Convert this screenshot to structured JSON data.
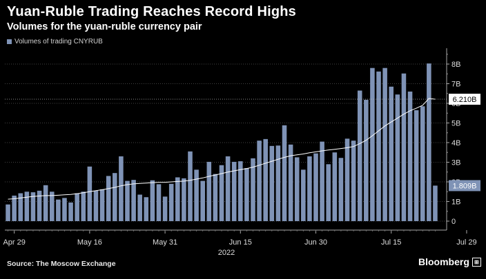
{
  "title": "Yuan-Ruble Trading Reaches Record Highs",
  "subtitle": "Volumes for the yuan-ruble currency pair",
  "legend_label": "Volumes of trading CNYRUB",
  "source": "Source: The Moscow Exchange",
  "brand": "Bloomberg",
  "colors": {
    "bar": "#7f93b6",
    "moving_average": "#ffffff",
    "background": "#000000",
    "grid": "#5a5a5a"
  },
  "chart_data": {
    "type": "bar",
    "xlabel": "",
    "ylabel": "",
    "ylim": [
      -0.3,
      8.8
    ],
    "y_ticks": [
      "0",
      "1B",
      "2B",
      "3B",
      "4B",
      "5B",
      "6B",
      "7B",
      "8B"
    ],
    "y_tick_values": [
      0,
      1,
      2,
      3,
      4,
      5,
      6,
      7,
      8
    ],
    "x_tick_labels": [
      "Apr 29",
      "May 16",
      "May 31",
      "Jun 15",
      "Jun 30",
      "Jul 15",
      "Jul 29"
    ],
    "x_tick_index": [
      1,
      13,
      25,
      37,
      49,
      61,
      73
    ],
    "year_label": "2022",
    "series": [
      {
        "name": "Volumes of trading CNYRUB",
        "unit": "B",
        "values": [
          0.85,
          1.3,
          1.42,
          1.5,
          1.47,
          1.55,
          1.83,
          1.5,
          1.1,
          1.18,
          0.95,
          1.42,
          1.5,
          2.78,
          1.55,
          1.62,
          2.3,
          2.45,
          3.3,
          2.05,
          2.1,
          1.35,
          1.22,
          2.08,
          1.88,
          1.25,
          1.9,
          2.23,
          2.18,
          3.55,
          2.62,
          2.05,
          3.02,
          2.4,
          2.85,
          3.3,
          3.02,
          3.05,
          2.7,
          3.2,
          4.1,
          4.18,
          3.83,
          3.85,
          4.88,
          3.9,
          3.25,
          2.62,
          3.3,
          3.45,
          4.05,
          2.9,
          3.5,
          3.22,
          4.2,
          4.1,
          6.65,
          6.18,
          7.8,
          7.62,
          7.8,
          6.85,
          6.45,
          7.52,
          6.6,
          5.65,
          5.85,
          8.03,
          1.809
        ]
      },
      {
        "name": "",
        "values": [
          1.12,
          1.14,
          1.18,
          1.22,
          1.26,
          1.28,
          1.3,
          1.3,
          1.32,
          1.34,
          1.36,
          1.4,
          1.45,
          1.5,
          1.55,
          1.6,
          1.66,
          1.72,
          1.8,
          1.86,
          1.9,
          1.92,
          1.94,
          1.96,
          1.98,
          1.98,
          2.0,
          2.02,
          2.04,
          2.08,
          2.14,
          2.2,
          2.28,
          2.35,
          2.42,
          2.5,
          2.56,
          2.62,
          2.68,
          2.75,
          2.85,
          2.95,
          3.05,
          3.15,
          3.25,
          3.33,
          3.38,
          3.42,
          3.48,
          3.53,
          3.58,
          3.62,
          3.66,
          3.7,
          3.74,
          3.8,
          3.95,
          4.12,
          4.35,
          4.6,
          4.85,
          5.05,
          5.25,
          5.45,
          5.62,
          5.75,
          5.9,
          6.25,
          6.21
        ]
      }
    ],
    "callouts": [
      "6.210B",
      "1.809B"
    ]
  }
}
